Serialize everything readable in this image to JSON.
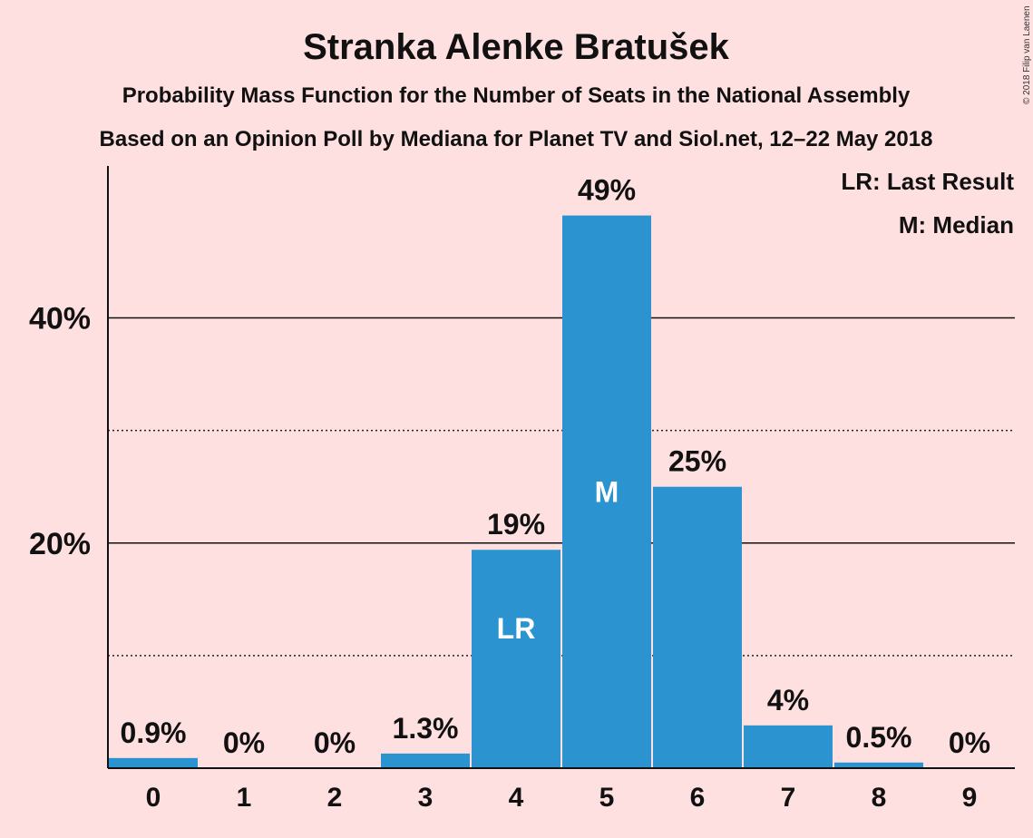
{
  "chart_data": {
    "type": "bar",
    "title": "Stranka Alenke Bratušek",
    "subtitle": "Probability Mass Function for the Number of Seats in the National Assembly",
    "subtitle2": "Based on an Opinion Poll by Mediana for Planet TV and Siol.net, 12–22 May 2018",
    "categories": [
      "0",
      "1",
      "2",
      "3",
      "4",
      "5",
      "6",
      "7",
      "8",
      "9"
    ],
    "values": [
      0.9,
      0,
      0,
      1.3,
      19.4,
      49.1,
      25.0,
      3.8,
      0.5,
      0
    ],
    "value_labels": [
      "0.9%",
      "0%",
      "0%",
      "1.3%",
      "19%",
      "49%",
      "25%",
      "4%",
      "0.5%",
      "0%"
    ],
    "in_bar_labels": {
      "4": "LR",
      "5": "M"
    },
    "ylim": [
      0,
      53.5
    ],
    "yticks": [
      {
        "value": 20,
        "label": "20%"
      },
      {
        "value": 40,
        "label": "40%"
      }
    ],
    "minor_gridlines": [
      10,
      30
    ],
    "legend": [
      "LR: Last Result",
      "M: Median"
    ],
    "legend_position": "top-right",
    "bar_color": "#2b93cf",
    "background_color": "#ffe0e0",
    "copyright": "© 2018 Filip van Laenen"
  }
}
